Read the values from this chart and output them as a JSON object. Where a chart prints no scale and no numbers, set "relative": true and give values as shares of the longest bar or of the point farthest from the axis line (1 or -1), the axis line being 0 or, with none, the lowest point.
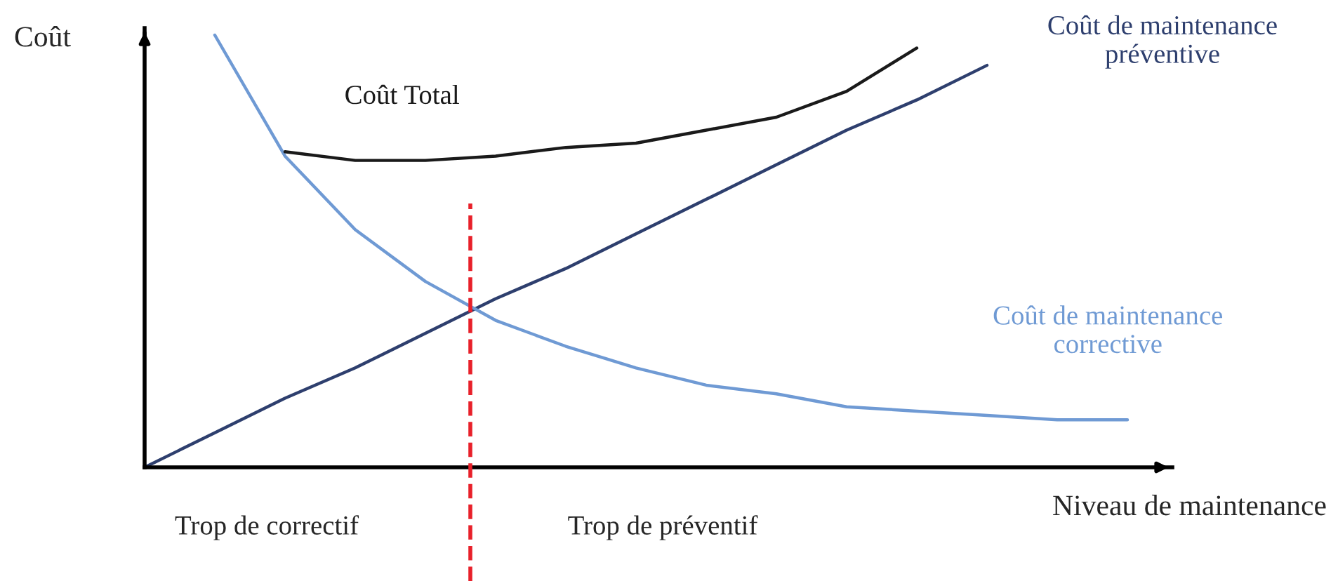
{
  "chart_data": {
    "type": "line",
    "relative": true,
    "xlabel": "Niveau de maintenance",
    "ylabel": "Coût",
    "categories": [
      null,
      null,
      null,
      null,
      null,
      null,
      null,
      null,
      null,
      null,
      null,
      null,
      null,
      null,
      null
    ],
    "series": [
      {
        "name": "Coût de maintenance\npréventive",
        "color": "#2e3f6e",
        "values": [
          0,
          0.08,
          0.16,
          0.23,
          0.31,
          0.39,
          0.46,
          0.54,
          0.62,
          0.7,
          0.78,
          0.85,
          0.93,
          null,
          null
        ]
      },
      {
        "name": "Coût de maintenance\ncorrective",
        "color": "#6f9ad4",
        "values": [
          null,
          1.0,
          0.72,
          0.55,
          0.43,
          0.34,
          0.28,
          0.23,
          0.19,
          0.17,
          0.14,
          0.13,
          0.12,
          0.11,
          0.11
        ]
      },
      {
        "name": "Coût Total",
        "color": "#1a1a1a",
        "values": [
          null,
          null,
          0.73,
          0.71,
          0.71,
          0.72,
          0.74,
          0.75,
          0.78,
          0.81,
          0.87,
          0.97,
          null,
          null,
          null
        ]
      }
    ],
    "annotations": [
      "Trop de correctif",
      "Trop de préventif"
    ],
    "legend": false,
    "marker": "none",
    "line_style": "solid"
  }
}
